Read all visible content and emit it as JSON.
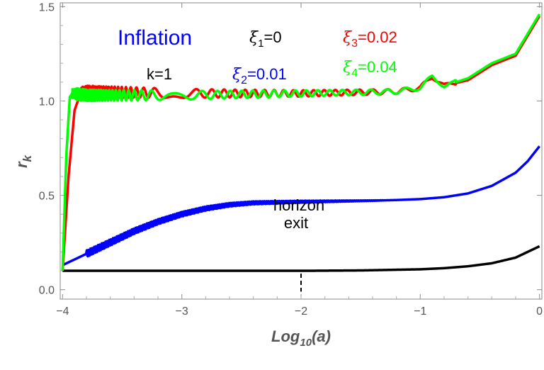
{
  "chart_data": {
    "type": "line",
    "title": "",
    "xlabel": "Log10(a)",
    "xlabel_main": "Log",
    "xlabel_sub": "10",
    "xlabel_tail": "(a)",
    "ylabel": "r_k",
    "ylabel_main": "r",
    "ylabel_sub": "k",
    "xlim": [
      -4.02,
      0.02
    ],
    "ylim": [
      -0.05,
      1.52
    ],
    "xticks": [
      -4,
      -3,
      -2,
      -1,
      0
    ],
    "xtick_labels": [
      "−4",
      "−3",
      "−2",
      "−1",
      "0"
    ],
    "yticks": [
      0.0,
      0.5,
      1.0,
      1.5
    ],
    "ytick_labels": [
      "0.0",
      "0.5",
      "1.0",
      "1.5"
    ],
    "series": [
      {
        "name": "ξ1=0",
        "color": "#000000",
        "x": [
          -4.0,
          -3.5,
          -3.0,
          -2.5,
          -2.0,
          -1.5,
          -1.0,
          -0.8,
          -0.6,
          -0.4,
          -0.2,
          0.0
        ],
        "y": [
          0.1,
          0.1,
          0.1,
          0.1,
          0.1,
          0.102,
          0.108,
          0.114,
          0.124,
          0.14,
          0.17,
          0.23
        ]
      },
      {
        "name": "ξ2=0.01",
        "color": "#0000ff",
        "x": [
          -4.0,
          -3.8,
          -3.6,
          -3.4,
          -3.2,
          -3.0,
          -2.8,
          -2.6,
          -2.4,
          -2.2,
          -2.0,
          -1.8,
          -1.6,
          -1.4,
          -1.2,
          -1.0,
          -0.8,
          -0.6,
          -0.4,
          -0.2,
          -0.1,
          0.0
        ],
        "y": [
          0.13,
          0.19,
          0.25,
          0.31,
          0.36,
          0.4,
          0.43,
          0.45,
          0.46,
          0.463,
          0.466,
          0.468,
          0.47,
          0.472,
          0.475,
          0.48,
          0.49,
          0.51,
          0.55,
          0.62,
          0.68,
          0.76
        ]
      },
      {
        "name": "ξ3=0.02",
        "color": "#ff0000",
        "x": [
          -4.0,
          -3.95,
          -3.9,
          -3.85,
          -3.8,
          -3.0,
          -2.0,
          -1.2,
          -1.0,
          -0.9,
          -0.8,
          -0.6,
          -0.4,
          -0.2,
          0.0
        ],
        "y": [
          0.1,
          0.6,
          0.95,
          1.04,
          1.05,
          1.04,
          1.04,
          1.05,
          1.07,
          1.13,
          1.08,
          1.11,
          1.19,
          1.24,
          1.45
        ]
      },
      {
        "name": "ξ4=0.04",
        "color": "#00ff00",
        "x": [
          -4.0,
          -3.97,
          -3.94,
          -3.92,
          -3.8,
          -3.0,
          -2.0,
          -1.2,
          -1.0,
          -0.9,
          -0.8,
          -0.6,
          -0.4,
          -0.2,
          0.0
        ],
        "y": [
          0.1,
          0.7,
          1.02,
          1.04,
          1.03,
          1.03,
          1.04,
          1.05,
          1.07,
          1.13,
          1.08,
          1.12,
          1.2,
          1.25,
          1.46
        ]
      }
    ],
    "annotations": {
      "inflation": "Inflation",
      "k": "k=1",
      "xi1": {
        "sym": "ξ",
        "sub": "1",
        "val": "=0"
      },
      "xi2": {
        "sym": "ξ",
        "sub": "2",
        "val": "=0.01"
      },
      "xi3": {
        "sym": "ξ",
        "sub": "3",
        "val": "=0.02"
      },
      "xi4": {
        "sym": "ξ",
        "sub": "4",
        "val": "=0.04"
      },
      "horizon1": "horizon",
      "horizon2": "exit",
      "horizon_exit_x": -2
    },
    "colors": {
      "xi1": "#000000",
      "xi2": "#0000ff",
      "xi3": "#ff0000",
      "xi4": "#00ff00",
      "inflation": "#0000ff"
    }
  }
}
